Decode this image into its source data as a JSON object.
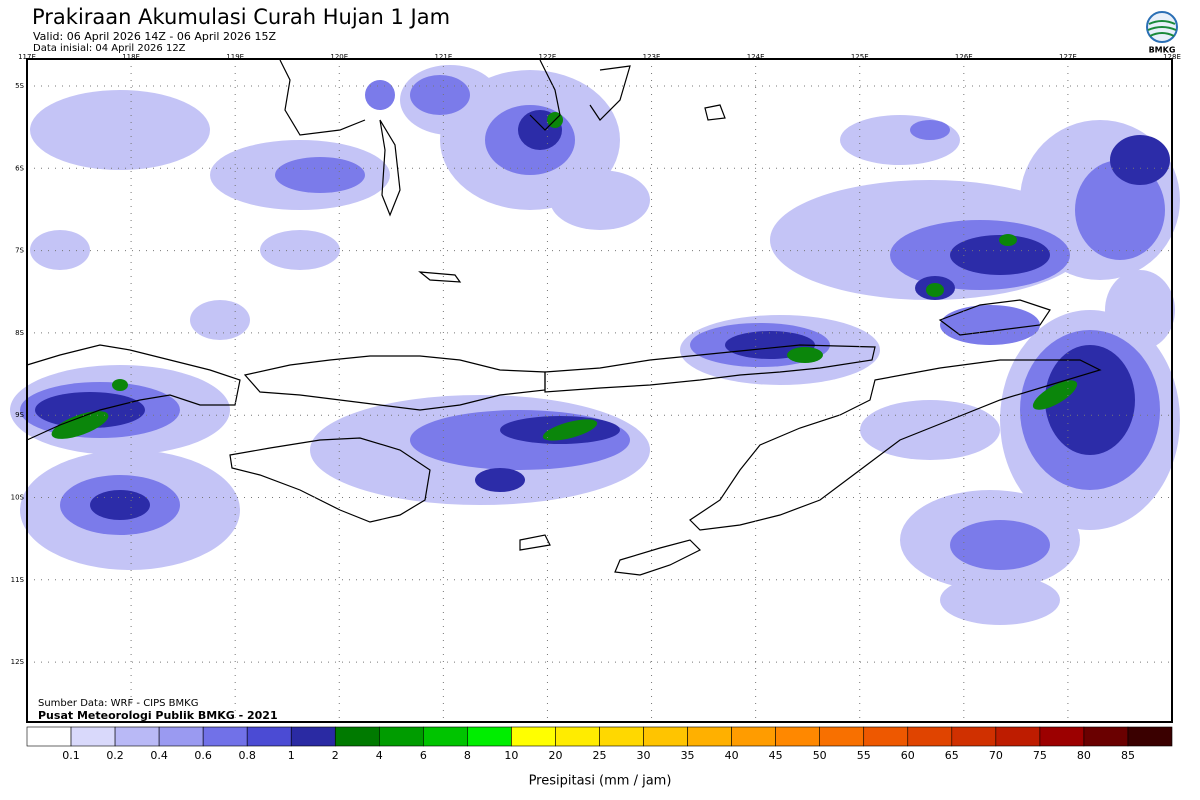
{
  "header": {
    "title": "Prakiraan Akumulasi Curah Hujan 1 Jam",
    "valid": "Valid: 06 April 2026 14Z - 06 April 2026 15Z",
    "initial": "Data inisial: 04 April 2026 12Z",
    "logo": "BMKG"
  },
  "map": {
    "lon_labels": [
      "117E",
      "118E",
      "119E",
      "120E",
      "121E",
      "122E",
      "123E",
      "124E",
      "125E",
      "126E",
      "127E",
      "128E"
    ],
    "lat_labels": [
      "5S",
      "6S",
      "7S",
      "8S",
      "9S",
      "10S",
      "11S",
      "12S"
    ],
    "source": "Sumber Data: WRF - CIPS BMKG",
    "credit": "Pusat Meteorologi Publik BMKG - 2021"
  },
  "legend": {
    "colors": [
      "#ffffff",
      "#d9d9fb",
      "#b9b9f6",
      "#9a9af1",
      "#7171e8",
      "#4b4bd4",
      "#2a2aa3",
      "#007a00",
      "#009c00",
      "#00c400",
      "#00ee00",
      "#ffff00",
      "#ffec00",
      "#ffd800",
      "#ffc400",
      "#ffb000",
      "#ff9c00",
      "#ff8800",
      "#f87000",
      "#ee5800",
      "#e04400",
      "#d03000",
      "#be1c00",
      "#9c0000",
      "#6a0000",
      "#3a0000"
    ],
    "labels": [
      0.1,
      0.2,
      0.4,
      0.6,
      0.8,
      1,
      2,
      4,
      6,
      8,
      10,
      20,
      25,
      30,
      35,
      40,
      45,
      50,
      55,
      60,
      65,
      70,
      75,
      80,
      85
    ],
    "axis_label": "Presipitasi (mm / jam)"
  }
}
